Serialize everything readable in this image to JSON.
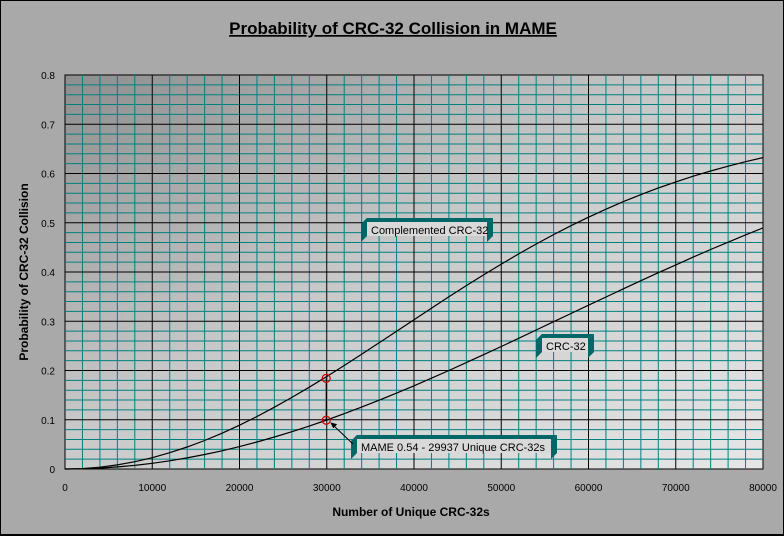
{
  "chart_data": {
    "type": "line",
    "title": "Probability of CRC-32 Collision in MAME",
    "xlabel": "Number of Unique CRC-32s",
    "ylabel": "Probability of CRC-32 Collision",
    "xlim": [
      0,
      80000
    ],
    "ylim": [
      0,
      0.8
    ],
    "xticks": [
      "0",
      "10000",
      "20000",
      "30000",
      "40000",
      "50000",
      "60000",
      "70000",
      "80000"
    ],
    "yticks": [
      "0",
      "0.1",
      "0.2",
      "0.3",
      "0.4",
      "0.5",
      "0.6",
      "0.7",
      "0.8"
    ],
    "grid": true,
    "x": [
      0,
      2000,
      4000,
      6000,
      8000,
      10000,
      12000,
      14000,
      16000,
      18000,
      20000,
      22000,
      24000,
      26000,
      28000,
      30000,
      32000,
      34000,
      36000,
      38000,
      40000,
      42000,
      44000,
      46000,
      48000,
      50000,
      52000,
      54000,
      56000,
      58000,
      60000,
      62000,
      64000,
      66000,
      68000,
      70000,
      72000,
      74000,
      76000,
      78000,
      80000
    ],
    "series": [
      {
        "name": "Complemented CRC-32",
        "color": "#000000",
        "values": [
          0,
          0.0009,
          0.0037,
          0.0083,
          0.0148,
          0.023,
          0.033,
          0.0446,
          0.0579,
          0.0727,
          0.089,
          0.1066,
          0.1254,
          0.1453,
          0.1661,
          0.1878,
          0.2101,
          0.233,
          0.2562,
          0.2797,
          0.3031,
          0.3265,
          0.3496,
          0.3723,
          0.3945,
          0.416,
          0.4368,
          0.4568,
          0.4759,
          0.4941,
          0.5113,
          0.5276,
          0.5429,
          0.5572,
          0.5706,
          0.583,
          0.5945,
          0.6051,
          0.6149,
          0.624,
          0.6323
        ]
      },
      {
        "name": "CRC-32",
        "color": "#000000",
        "values": [
          0,
          0.0005,
          0.0019,
          0.0042,
          0.0074,
          0.0116,
          0.0166,
          0.0226,
          0.0294,
          0.037,
          0.0455,
          0.0548,
          0.0649,
          0.0757,
          0.0872,
          0.0994,
          0.1122,
          0.1256,
          0.1396,
          0.1541,
          0.169,
          0.1843,
          0.2,
          0.216,
          0.2323,
          0.2488,
          0.2654,
          0.2822,
          0.299,
          0.3158,
          0.3326,
          0.3493,
          0.3659,
          0.3823,
          0.3985,
          0.4145,
          0.4302,
          0.4456,
          0.4606,
          0.4753,
          0.4896
        ]
      }
    ],
    "markers": [
      {
        "x": 29937,
        "y": 0.184,
        "series": "Complemented CRC-32"
      },
      {
        "x": 29937,
        "y": 0.099,
        "series": "CRC-32"
      }
    ],
    "annotations": [
      {
        "text": "Complemented CRC-32",
        "target_series": "Complemented CRC-32"
      },
      {
        "text": "CRC-32",
        "target_series": "CRC-32"
      },
      {
        "text": "MAME 0.54 - 29937 Unique CRC-32s",
        "target_x": 29937,
        "target_y": 0.099
      }
    ],
    "colors": {
      "background": "#a9a9a9",
      "gridline": "#008080",
      "major_gridline": "#000000",
      "callout_fill": "#d9d9d9",
      "callout_shadow": "#006666",
      "marker": "#cc0000"
    }
  }
}
